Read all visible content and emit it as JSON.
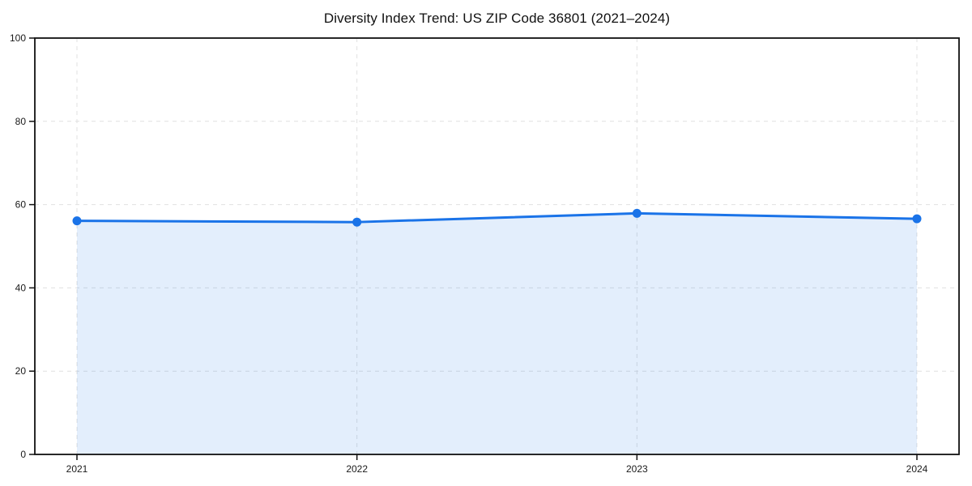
{
  "chart_data": {
    "type": "area",
    "title": "Diversity Index Trend: US ZIP Code 36801 (2021–2024)",
    "categories": [
      "2021",
      "2022",
      "2023",
      "2024"
    ],
    "series": [
      {
        "name": "Diversity Index",
        "values": [
          56.1,
          55.8,
          57.9,
          56.6
        ]
      }
    ],
    "xlabel": "",
    "ylabel": "",
    "ylim": [
      0,
      100
    ],
    "yticks": [
      0,
      20,
      40,
      60,
      80,
      100
    ],
    "grid": true,
    "grid_style": "dashed",
    "legend_position": "none",
    "marker": "circle",
    "colors": {
      "line": "#1a73e8",
      "marker": "#1a73e8",
      "fill": "rgba(26,115,232,0.12)",
      "grid": "#e0e0e0",
      "spine": "#111111",
      "tick_text": "#1a1a1a",
      "background": "#ffffff"
    }
  }
}
